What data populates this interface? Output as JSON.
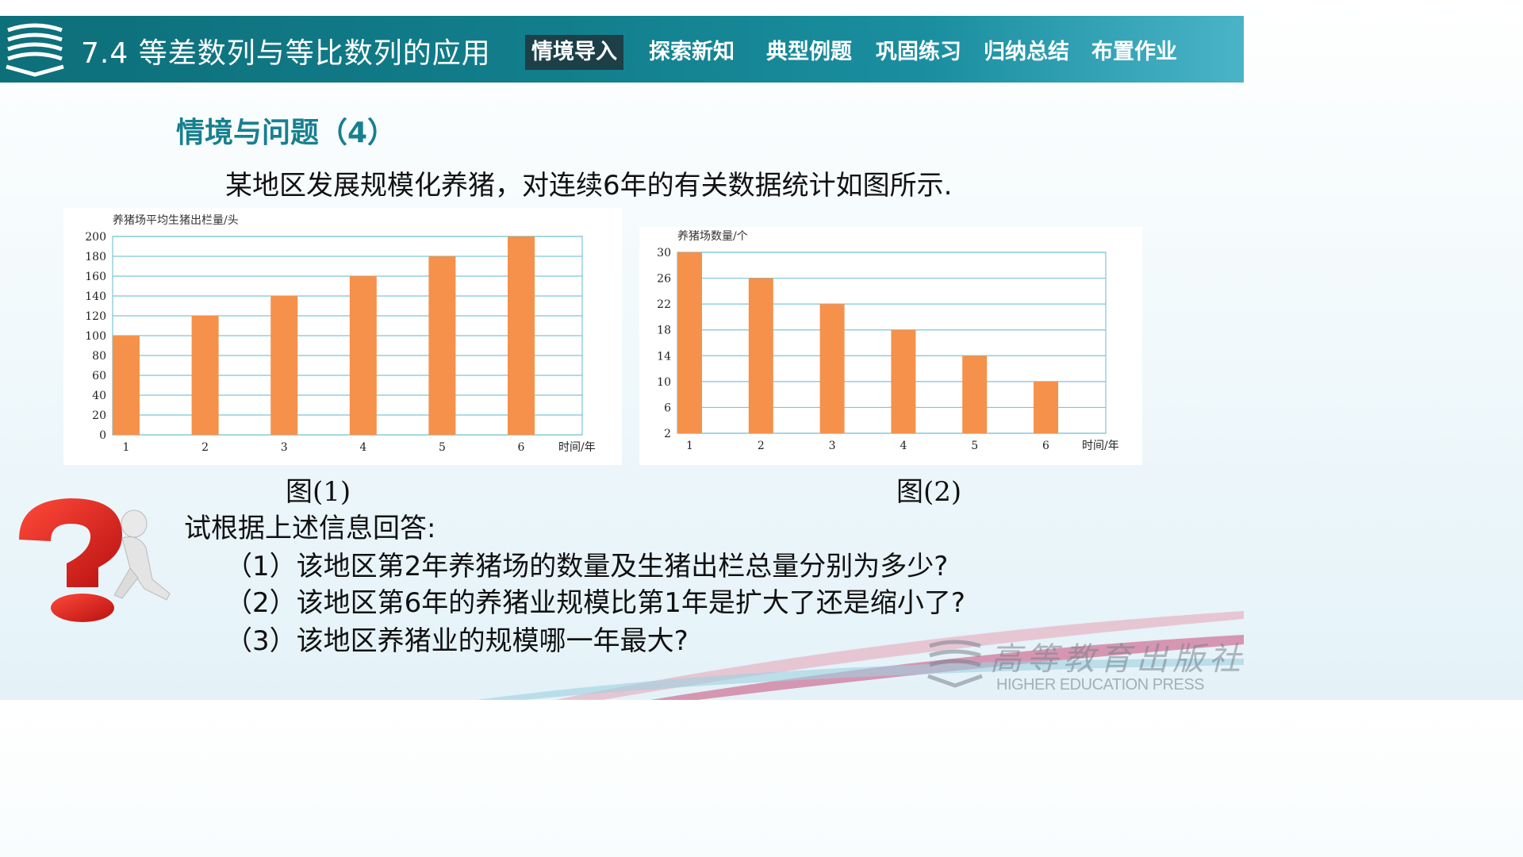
{
  "header": {
    "title": "7.4  等差数列与等比数列的应用",
    "nav": [
      {
        "label": "情境导入",
        "active": true
      },
      {
        "label": "探索新知",
        "active": false
      },
      {
        "label": "典型例题",
        "active": false
      },
      {
        "label": "巩固练习",
        "active": false
      },
      {
        "label": "归纳总结",
        "active": false
      },
      {
        "label": "布置作业",
        "active": false
      }
    ]
  },
  "section_title": "情境与问题（4）",
  "intro": "某地区发展规模化养猪，对连续6年的有关数据统计如图所示.",
  "chart_data": [
    {
      "type": "bar",
      "ylabel": "养猪场平均生猪出栏量/头",
      "xlabel": "时间/年",
      "categories": [
        "1",
        "2",
        "3",
        "4",
        "5",
        "6"
      ],
      "values": [
        100,
        120,
        140,
        160,
        180,
        200
      ],
      "yticks": [
        0,
        20,
        40,
        60,
        80,
        100,
        120,
        140,
        160,
        180,
        200
      ],
      "ylim": [
        0,
        200
      ],
      "grid": true,
      "color": "#f5914a",
      "caption": "图(1)"
    },
    {
      "type": "bar",
      "ylabel": "养猪场数量/个",
      "xlabel": "时间/年",
      "categories": [
        "1",
        "2",
        "3",
        "4",
        "5",
        "6"
      ],
      "values": [
        30,
        26,
        22,
        18,
        14,
        10
      ],
      "yticks": [
        2,
        6,
        10,
        14,
        18,
        22,
        26,
        30
      ],
      "ylim": [
        2,
        30
      ],
      "grid": true,
      "color": "#f5914a",
      "caption": "图(2)"
    }
  ],
  "prompt": "试根据上述信息回答:",
  "questions": [
    "（1）该地区第2年养猪场的数量及生猪出栏总量分别为多少?",
    "（2）该地区第6年的养猪业规模比第1年是扩大了还是缩小了?",
    "（3）该地区养猪业的规模哪一年最大?"
  ],
  "publisher": {
    "name_cn": "高等教育出版社",
    "name_en": "HIGHER EDUCATION PRESS"
  },
  "colors": {
    "header": "#127e8c",
    "accent": "#17808f",
    "bar": "#f5914a",
    "grid": "#7cc6d4"
  }
}
